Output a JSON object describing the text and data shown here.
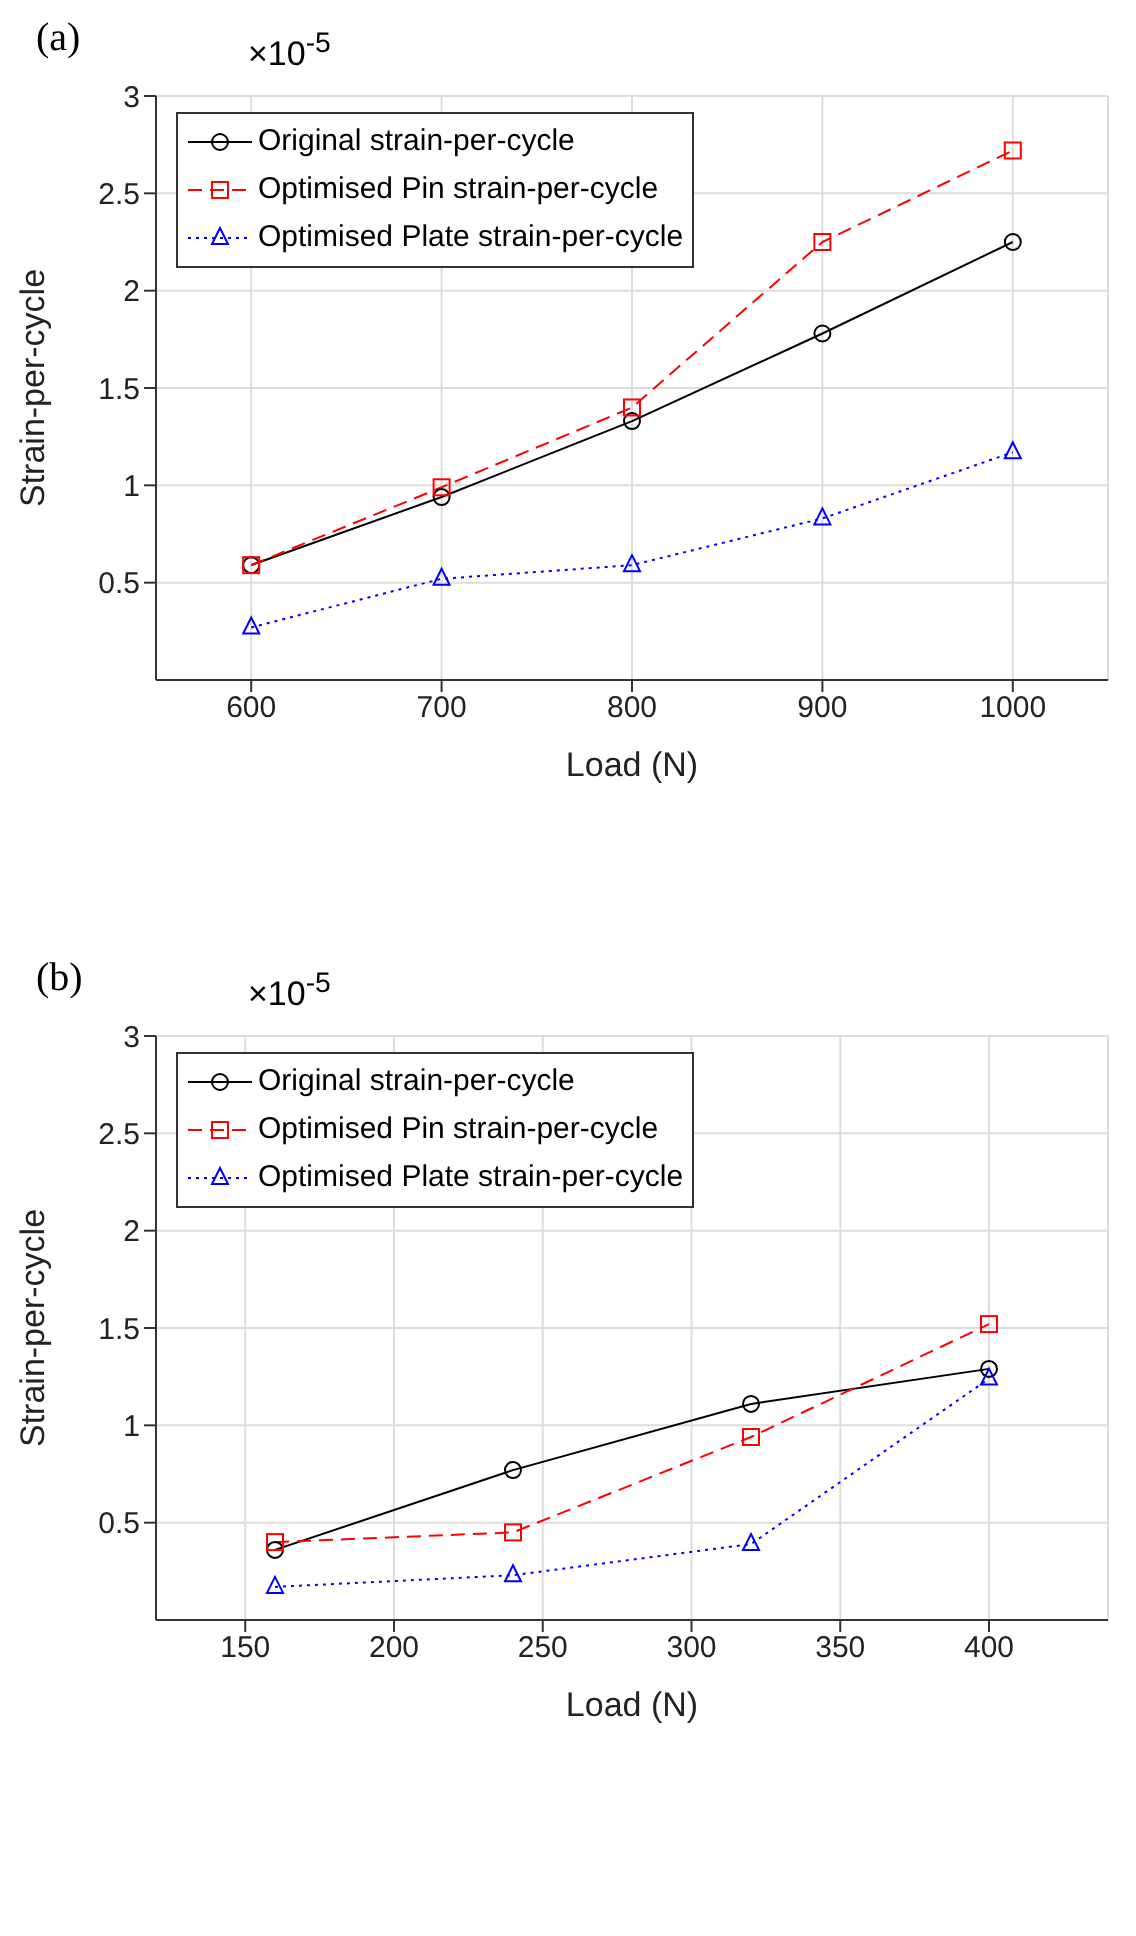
{
  "chart_data": [
    {
      "type": "line",
      "title": "(a)",
      "xlabel": "Load (N)",
      "ylabel": "Strain-per-cycle",
      "annotations": [
        "×10$^{-5}$"
      ],
      "x": [
        600,
        700,
        800,
        900,
        1000
      ],
      "series": [
        {
          "name": "Original strain-per-cycle",
          "color": "#000000",
          "marker": "circle",
          "line_style": "solid",
          "values": [
            0.59,
            0.94,
            1.33,
            1.78,
            2.25
          ]
        },
        {
          "name": "Optimised Pin strain-per-cycle",
          "color": "#ff0000",
          "marker": "square",
          "line_style": "dashed",
          "values": [
            0.59,
            0.99,
            1.4,
            2.25,
            2.72
          ]
        },
        {
          "name": "Optimised Plate strain-per-cycle",
          "color": "#0000ff",
          "marker": "triangle",
          "line_style": "dotted",
          "values": [
            0.27,
            0.52,
            0.59,
            0.83,
            1.17
          ]
        }
      ],
      "xlim": [
        550,
        1050
      ],
      "xticks": [
        600,
        700,
        800,
        900,
        1000
      ],
      "ylim": [
        0,
        3
      ],
      "yticks": [
        0.5,
        1,
        1.5,
        2,
        2.5,
        3
      ],
      "grid": true,
      "legend": "top left"
    },
    {
      "type": "line",
      "title": "(b)",
      "xlabel": "Load (N)",
      "ylabel": "Strain-per-cycle",
      "annotations": [
        "×10$^{-5}$"
      ],
      "x": [
        160,
        240,
        320,
        400
      ],
      "series": [
        {
          "name": "Original strain-per-cycle",
          "color": "#000000",
          "marker": "circle",
          "line_style": "solid",
          "values": [
            0.36,
            0.77,
            1.11,
            1.29
          ]
        },
        {
          "name": "Optimised Pin strain-per-cycle",
          "color": "#ff0000",
          "marker": "square",
          "line_style": "dashed",
          "values": [
            0.4,
            0.45,
            0.94,
            1.52
          ]
        },
        {
          "name": "Optimised Plate strain-per-cycle",
          "color": "#0000ff",
          "marker": "triangle",
          "line_style": "dotted",
          "values": [
            0.17,
            0.23,
            0.39,
            1.24
          ]
        }
      ],
      "xlim": [
        120,
        440
      ],
      "xticks": [
        150,
        200,
        250,
        300,
        350,
        400
      ],
      "ylim": [
        0,
        3
      ],
      "yticks": [
        0.5,
        1,
        1.5,
        2,
        2.5,
        3
      ],
      "grid": true,
      "legend": "top left"
    }
  ]
}
